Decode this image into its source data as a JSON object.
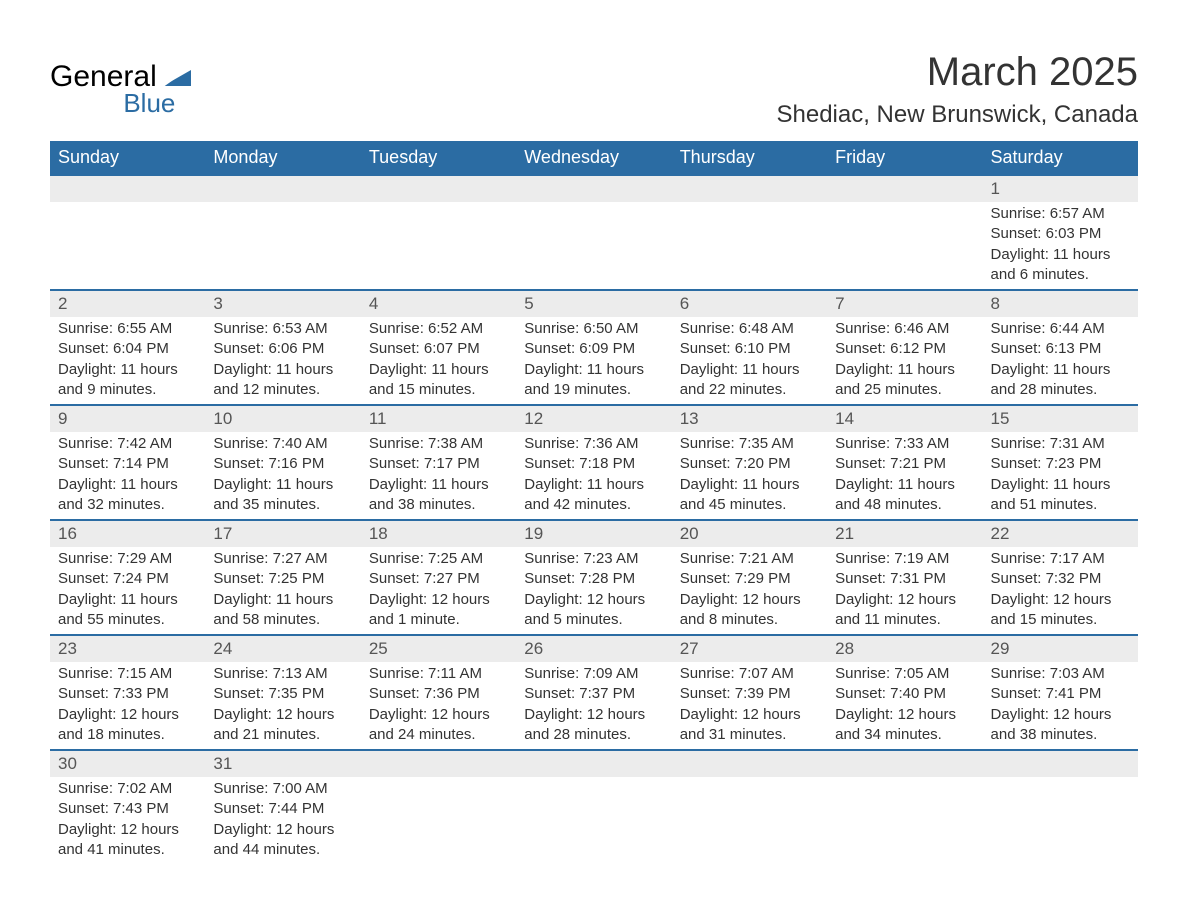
{
  "logo": {
    "text_general": "General",
    "text_blue": "Blue",
    "icon_color": "#2b6ca3"
  },
  "title": {
    "month": "March 2025",
    "location": "Shediac, New Brunswick, Canada"
  },
  "colors": {
    "header_bg": "#2b6ca3",
    "header_text": "#ffffff",
    "daynum_bg": "#ececec",
    "row_border": "#2b6ca3",
    "body_text": "#333333"
  },
  "day_headers": [
    "Sunday",
    "Monday",
    "Tuesday",
    "Wednesday",
    "Thursday",
    "Friday",
    "Saturday"
  ],
  "weeks": [
    [
      {
        "empty": true
      },
      {
        "empty": true
      },
      {
        "empty": true
      },
      {
        "empty": true
      },
      {
        "empty": true
      },
      {
        "empty": true
      },
      {
        "day": "1",
        "sunrise": "Sunrise: 6:57 AM",
        "sunset": "Sunset: 6:03 PM",
        "daylight1": "Daylight: 11 hours",
        "daylight2": "and 6 minutes."
      }
    ],
    [
      {
        "day": "2",
        "sunrise": "Sunrise: 6:55 AM",
        "sunset": "Sunset: 6:04 PM",
        "daylight1": "Daylight: 11 hours",
        "daylight2": "and 9 minutes."
      },
      {
        "day": "3",
        "sunrise": "Sunrise: 6:53 AM",
        "sunset": "Sunset: 6:06 PM",
        "daylight1": "Daylight: 11 hours",
        "daylight2": "and 12 minutes."
      },
      {
        "day": "4",
        "sunrise": "Sunrise: 6:52 AM",
        "sunset": "Sunset: 6:07 PM",
        "daylight1": "Daylight: 11 hours",
        "daylight2": "and 15 minutes."
      },
      {
        "day": "5",
        "sunrise": "Sunrise: 6:50 AM",
        "sunset": "Sunset: 6:09 PM",
        "daylight1": "Daylight: 11 hours",
        "daylight2": "and 19 minutes."
      },
      {
        "day": "6",
        "sunrise": "Sunrise: 6:48 AM",
        "sunset": "Sunset: 6:10 PM",
        "daylight1": "Daylight: 11 hours",
        "daylight2": "and 22 minutes."
      },
      {
        "day": "7",
        "sunrise": "Sunrise: 6:46 AM",
        "sunset": "Sunset: 6:12 PM",
        "daylight1": "Daylight: 11 hours",
        "daylight2": "and 25 minutes."
      },
      {
        "day": "8",
        "sunrise": "Sunrise: 6:44 AM",
        "sunset": "Sunset: 6:13 PM",
        "daylight1": "Daylight: 11 hours",
        "daylight2": "and 28 minutes."
      }
    ],
    [
      {
        "day": "9",
        "sunrise": "Sunrise: 7:42 AM",
        "sunset": "Sunset: 7:14 PM",
        "daylight1": "Daylight: 11 hours",
        "daylight2": "and 32 minutes."
      },
      {
        "day": "10",
        "sunrise": "Sunrise: 7:40 AM",
        "sunset": "Sunset: 7:16 PM",
        "daylight1": "Daylight: 11 hours",
        "daylight2": "and 35 minutes."
      },
      {
        "day": "11",
        "sunrise": "Sunrise: 7:38 AM",
        "sunset": "Sunset: 7:17 PM",
        "daylight1": "Daylight: 11 hours",
        "daylight2": "and 38 minutes."
      },
      {
        "day": "12",
        "sunrise": "Sunrise: 7:36 AM",
        "sunset": "Sunset: 7:18 PM",
        "daylight1": "Daylight: 11 hours",
        "daylight2": "and 42 minutes."
      },
      {
        "day": "13",
        "sunrise": "Sunrise: 7:35 AM",
        "sunset": "Sunset: 7:20 PM",
        "daylight1": "Daylight: 11 hours",
        "daylight2": "and 45 minutes."
      },
      {
        "day": "14",
        "sunrise": "Sunrise: 7:33 AM",
        "sunset": "Sunset: 7:21 PM",
        "daylight1": "Daylight: 11 hours",
        "daylight2": "and 48 minutes."
      },
      {
        "day": "15",
        "sunrise": "Sunrise: 7:31 AM",
        "sunset": "Sunset: 7:23 PM",
        "daylight1": "Daylight: 11 hours",
        "daylight2": "and 51 minutes."
      }
    ],
    [
      {
        "day": "16",
        "sunrise": "Sunrise: 7:29 AM",
        "sunset": "Sunset: 7:24 PM",
        "daylight1": "Daylight: 11 hours",
        "daylight2": "and 55 minutes."
      },
      {
        "day": "17",
        "sunrise": "Sunrise: 7:27 AM",
        "sunset": "Sunset: 7:25 PM",
        "daylight1": "Daylight: 11 hours",
        "daylight2": "and 58 minutes."
      },
      {
        "day": "18",
        "sunrise": "Sunrise: 7:25 AM",
        "sunset": "Sunset: 7:27 PM",
        "daylight1": "Daylight: 12 hours",
        "daylight2": "and 1 minute."
      },
      {
        "day": "19",
        "sunrise": "Sunrise: 7:23 AM",
        "sunset": "Sunset: 7:28 PM",
        "daylight1": "Daylight: 12 hours",
        "daylight2": "and 5 minutes."
      },
      {
        "day": "20",
        "sunrise": "Sunrise: 7:21 AM",
        "sunset": "Sunset: 7:29 PM",
        "daylight1": "Daylight: 12 hours",
        "daylight2": "and 8 minutes."
      },
      {
        "day": "21",
        "sunrise": "Sunrise: 7:19 AM",
        "sunset": "Sunset: 7:31 PM",
        "daylight1": "Daylight: 12 hours",
        "daylight2": "and 11 minutes."
      },
      {
        "day": "22",
        "sunrise": "Sunrise: 7:17 AM",
        "sunset": "Sunset: 7:32 PM",
        "daylight1": "Daylight: 12 hours",
        "daylight2": "and 15 minutes."
      }
    ],
    [
      {
        "day": "23",
        "sunrise": "Sunrise: 7:15 AM",
        "sunset": "Sunset: 7:33 PM",
        "daylight1": "Daylight: 12 hours",
        "daylight2": "and 18 minutes."
      },
      {
        "day": "24",
        "sunrise": "Sunrise: 7:13 AM",
        "sunset": "Sunset: 7:35 PM",
        "daylight1": "Daylight: 12 hours",
        "daylight2": "and 21 minutes."
      },
      {
        "day": "25",
        "sunrise": "Sunrise: 7:11 AM",
        "sunset": "Sunset: 7:36 PM",
        "daylight1": "Daylight: 12 hours",
        "daylight2": "and 24 minutes."
      },
      {
        "day": "26",
        "sunrise": "Sunrise: 7:09 AM",
        "sunset": "Sunset: 7:37 PM",
        "daylight1": "Daylight: 12 hours",
        "daylight2": "and 28 minutes."
      },
      {
        "day": "27",
        "sunrise": "Sunrise: 7:07 AM",
        "sunset": "Sunset: 7:39 PM",
        "daylight1": "Daylight: 12 hours",
        "daylight2": "and 31 minutes."
      },
      {
        "day": "28",
        "sunrise": "Sunrise: 7:05 AM",
        "sunset": "Sunset: 7:40 PM",
        "daylight1": "Daylight: 12 hours",
        "daylight2": "and 34 minutes."
      },
      {
        "day": "29",
        "sunrise": "Sunrise: 7:03 AM",
        "sunset": "Sunset: 7:41 PM",
        "daylight1": "Daylight: 12 hours",
        "daylight2": "and 38 minutes."
      }
    ],
    [
      {
        "day": "30",
        "sunrise": "Sunrise: 7:02 AM",
        "sunset": "Sunset: 7:43 PM",
        "daylight1": "Daylight: 12 hours",
        "daylight2": "and 41 minutes."
      },
      {
        "day": "31",
        "sunrise": "Sunrise: 7:00 AM",
        "sunset": "Sunset: 7:44 PM",
        "daylight1": "Daylight: 12 hours",
        "daylight2": "and 44 minutes."
      },
      {
        "empty": true
      },
      {
        "empty": true
      },
      {
        "empty": true
      },
      {
        "empty": true
      },
      {
        "empty": true
      }
    ]
  ]
}
